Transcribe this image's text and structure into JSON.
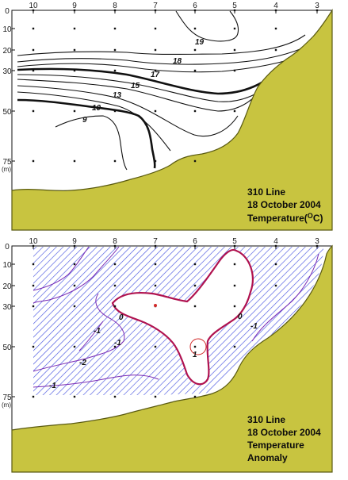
{
  "chart_data": [
    {
      "type": "contour",
      "title": "310 Line",
      "subtitle": "18 October 2004",
      "variable_label": "Temperature(",
      "variable_superscript": "O",
      "variable_unit_tail": "C)",
      "x_stations": [
        "10",
        "9",
        "8",
        "7",
        "6",
        "5",
        "4",
        "3"
      ],
      "y_ticks": [
        "0",
        "10",
        "20",
        "30",
        "50",
        "75"
      ],
      "y_unit": "(m)",
      "y_depth_values": [
        0,
        10,
        20,
        30,
        50,
        75
      ],
      "grid": false,
      "contour_labels": [
        {
          "value": "19"
        },
        {
          "value": "18"
        },
        {
          "value": "17"
        },
        {
          "value": "15"
        },
        {
          "value": "13"
        },
        {
          "value": "10"
        },
        {
          "value": "9"
        }
      ],
      "colors": {
        "land": "#c8c440",
        "land_edge": "#5a5a10",
        "contour": "#111111",
        "station_dot": "#111111"
      }
    },
    {
      "type": "contour",
      "title": "310 Line",
      "subtitle": "18 October 2004",
      "variable_label": "Temperature",
      "variable_label_2": "Anomaly",
      "x_stations": [
        "10",
        "9",
        "8",
        "7",
        "6",
        "5",
        "4",
        "3"
      ],
      "y_ticks": [
        "0",
        "10",
        "20",
        "30",
        "50",
        "75"
      ],
      "y_unit": "(m)",
      "y_depth_values": [
        0,
        10,
        20,
        30,
        50,
        75
      ],
      "grid": false,
      "contour_labels": [
        {
          "value": "0"
        },
        {
          "value": "0"
        },
        {
          "value": "1"
        },
        {
          "value": "-1"
        },
        {
          "value": "-1"
        },
        {
          "value": "-2"
        },
        {
          "value": "-1"
        },
        {
          "value": "-1"
        }
      ],
      "colors": {
        "land": "#c8c440",
        "land_edge": "#5a5a10",
        "zero_contour": "#b0124f",
        "negative_contour": "#7a2bb4",
        "hatch": "#4a56e0",
        "station_dot": "#111111"
      }
    }
  ]
}
